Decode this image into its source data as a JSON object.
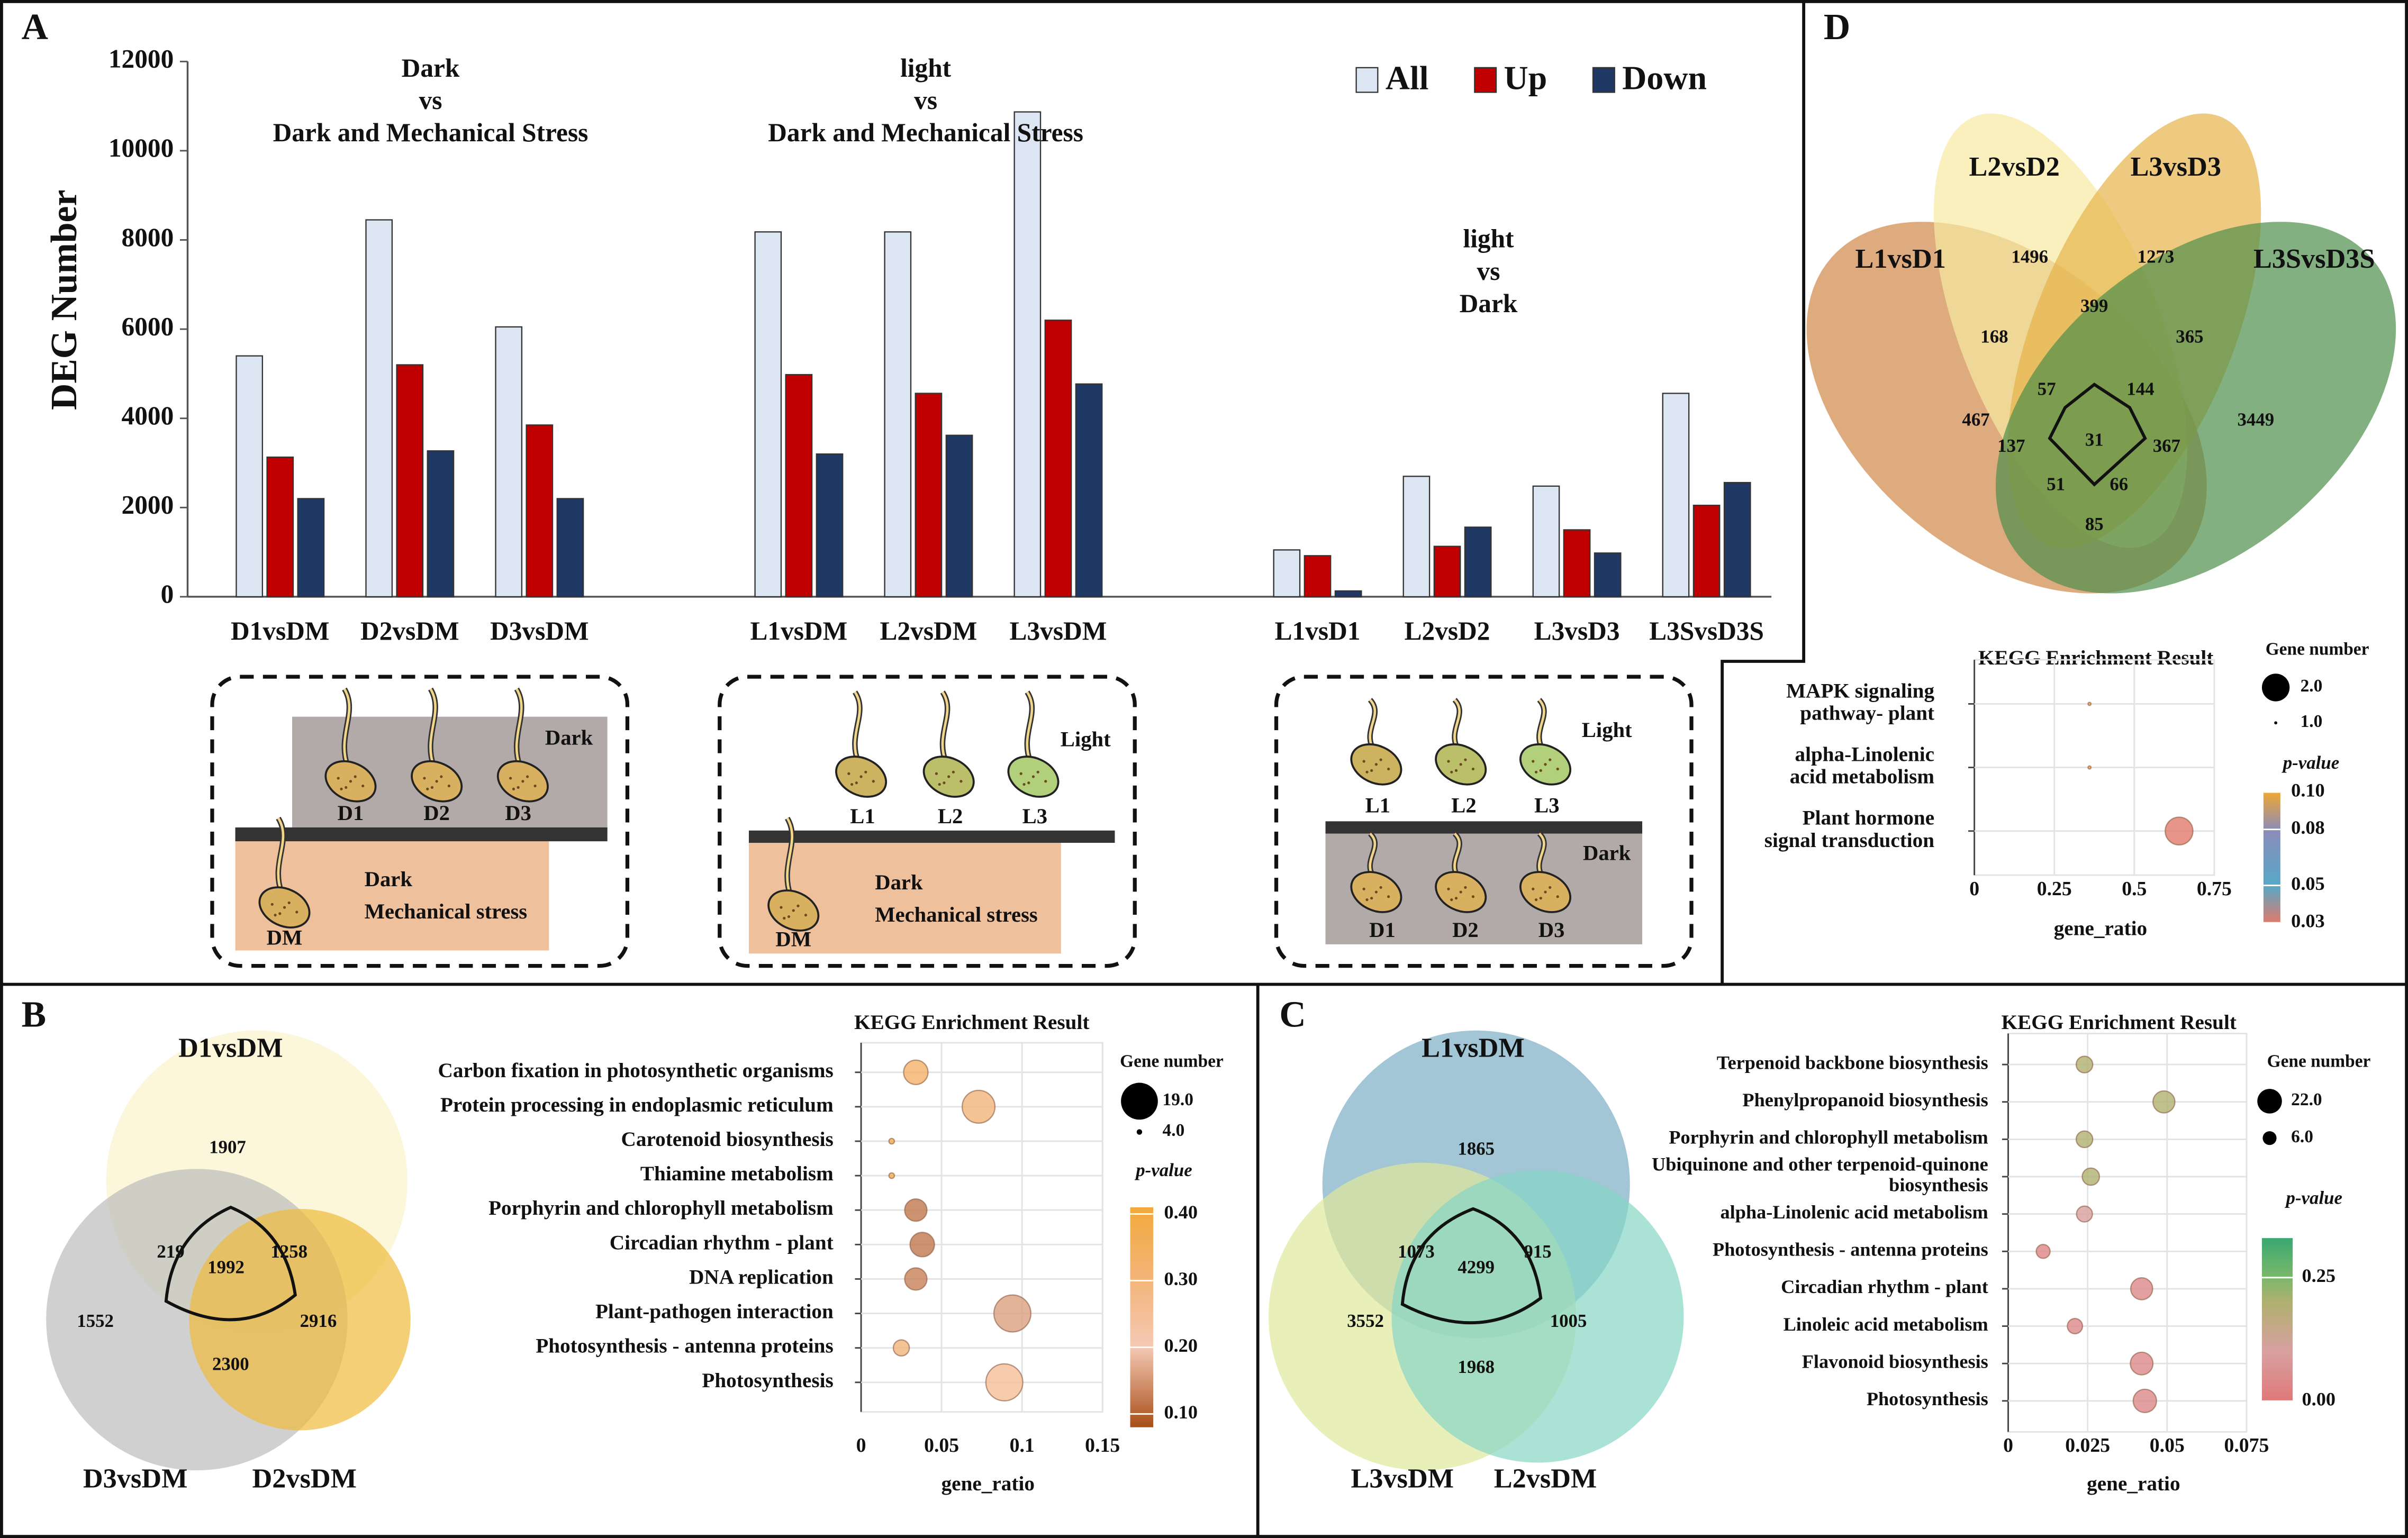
{
  "panel_labels": [
    "A",
    "B",
    "C",
    "D"
  ],
  "chart_data": [
    {
      "type": "bar",
      "ylabel": "DEG Number",
      "categories": [
        "D1vsDM",
        "D2vsDM",
        "D3vsDM",
        null,
        "L1vsDM",
        "L2vsDM",
        "L3vsDM",
        null,
        "L1vsD1",
        "L2vsD2",
        "L3vsD3",
        "L3SvsD3S"
      ],
      "series": [
        {
          "name": "All",
          "color": "#dce6f2",
          "values": [
            5400,
            8450,
            6050,
            null,
            8180,
            8180,
            10870,
            null,
            1050,
            2700,
            2480,
            4560
          ]
        },
        {
          "name": "Up",
          "color": "#c00000",
          "values": [
            3130,
            5200,
            3850,
            null,
            4980,
            4560,
            6200,
            null,
            920,
            1130,
            1500,
            2050
          ]
        },
        {
          "name": "Down",
          "color": "#1f3864",
          "values": [
            2200,
            3270,
            2200,
            null,
            3200,
            3620,
            4770,
            null,
            130,
            1560,
            980,
            2560
          ]
        }
      ],
      "ylim": [
        0,
        12000
      ],
      "yticks": [
        0,
        2000,
        4000,
        6000,
        8000,
        10000,
        12000
      ],
      "legend": "upper right",
      "annotations": [
        [
          "Dark",
          "vs",
          "Dark and Mechanical Stress"
        ],
        [
          "light",
          "vs",
          "Dark and Mechanical Stress"
        ],
        [
          "light",
          "vs",
          "Dark"
        ]
      ]
    },
    {
      "type": "bubble",
      "title": "KEGG Enrichment Result",
      "xlabel": "gene_ratio",
      "categories": [
        "Carbon fixation in photosynthetic organisms",
        "Protein processing in endoplasmic reticulum",
        "Carotenoid biosynthesis",
        "Thiamine metabolism",
        "Porphyrin and chlorophyll metabolism",
        "Circadian rhythm - plant",
        "DNA replication",
        "Plant-pathogen interaction",
        "Photosynthesis - antenna proteins",
        "Photosynthesis"
      ],
      "values": [
        0.034,
        0.073,
        0.019,
        0.019,
        0.034,
        0.038,
        0.034,
        0.094,
        0.025,
        0.089
      ],
      "sizes": [
        13,
        17,
        4,
        4,
        12,
        13,
        12,
        19,
        9,
        19
      ],
      "pvalues": [
        0.33,
        0.3,
        0.38,
        0.38,
        0.12,
        0.12,
        0.13,
        0.16,
        0.3,
        0.25
      ],
      "xlim": [
        0,
        0.15
      ],
      "xticks": [
        0,
        0.05,
        0.1,
        0.15
      ],
      "grid": true,
      "size_legend": {
        "title": "Gene number",
        "values": [
          {
            "value": 19,
            "label": "19.0"
          },
          {
            "value": 4,
            "label": "4.0"
          }
        ]
      },
      "color_legend": {
        "title": "p-value",
        "clim": [
          0.08,
          0.41
        ],
        "ticks": [
          {
            "value": 0.4,
            "label": "0.40"
          },
          {
            "value": 0.3,
            "label": "0.30"
          },
          {
            "value": 0.2,
            "label": "0.20"
          },
          {
            "value": 0.1,
            "label": "0.10"
          }
        ],
        "colorscale": [
          [
            0.08,
            "#a84e18"
          ],
          [
            0.2,
            "#f4c9b4"
          ],
          [
            0.3,
            "#f3b57a"
          ],
          [
            0.41,
            "#f2a93b"
          ]
        ]
      }
    },
    {
      "type": "bubble",
      "title": "KEGG Enrichment Result",
      "xlabel": "gene_ratio",
      "categories": [
        "Terpenoid backbone biosynthesis",
        "Phenylpropanoid biosynthesis",
        "Porphyrin and chlorophyll metabolism",
        [
          "Ubiquinone and other terpenoid-quinone",
          "biosynthesis"
        ],
        "alpha-Linolenic acid metabolism",
        "Photosynthesis - antenna proteins",
        "Circadian rhythm - plant",
        "Linoleic acid metabolism",
        "Flavonoid biosynthesis",
        "Photosynthesis"
      ],
      "values": [
        0.024,
        0.049,
        0.024,
        0.026,
        0.024,
        0.011,
        0.042,
        0.021,
        0.042,
        0.043
      ],
      "sizes": [
        10,
        18,
        10,
        11,
        9,
        6,
        18,
        8,
        19,
        20
      ],
      "pvalues": [
        0.2,
        0.2,
        0.2,
        0.2,
        0.1,
        0.03,
        0.04,
        0.04,
        0.04,
        0.04
      ],
      "xlim": [
        0,
        0.075
      ],
      "xticks": [
        0,
        0.025,
        0.05,
        0.075
      ],
      "grid": true,
      "size_legend": {
        "title": "Gene number",
        "values": [
          {
            "value": 22,
            "label": "22.0"
          },
          {
            "value": 6,
            "label": "6.0"
          }
        ]
      },
      "color_legend": {
        "title": "p-value",
        "clim": [
          0,
          0.33
        ],
        "ticks": [
          0.25,
          {
            "value": 0,
            "label": "0.00"
          }
        ],
        "colorscale": [
          [
            0,
            "#e07878"
          ],
          [
            0.1,
            "#d8a0a0"
          ],
          [
            0.2,
            "#b0b070"
          ],
          [
            0.25,
            "#7ab86a"
          ],
          [
            0.33,
            "#3aa870"
          ]
        ]
      }
    },
    {
      "type": "bubble",
      "title": "KEGG Enrichment Result",
      "xlabel": "gene_ratio",
      "categories": [
        [
          "MAPK signaling",
          "pathway- plant"
        ],
        [
          "alpha-Linolenic",
          "acid metabolism"
        ],
        [
          "Plant hormone",
          "signal transduction"
        ]
      ],
      "values": [
        0.36,
        0.36,
        0.64
      ],
      "sizes": [
        1,
        1,
        2
      ],
      "pvalues": [
        0.1,
        0.1,
        0.03
      ],
      "xlim": [
        0,
        0.75
      ],
      "xticks": [
        0,
        0.25,
        0.5,
        0.75
      ],
      "grid": true,
      "size_legend": {
        "title": "Gene number",
        "values": [
          {
            "value": 2,
            "label": "2.0"
          },
          {
            "value": 1,
            "label": "1.0"
          }
        ]
      },
      "color_legend": {
        "title": "p-value",
        "clim": [
          0.03,
          0.1
        ],
        "ticks": [
          {
            "value": 0.1,
            "label": "0.10"
          },
          0.08,
          0.05,
          0.03
        ],
        "colorscale": [
          [
            0.03,
            "#e07a6a"
          ],
          [
            0.05,
            "#56a8c8"
          ],
          [
            0.08,
            "#8c8cb8"
          ],
          [
            0.1,
            "#f0a830"
          ]
        ]
      }
    }
  ],
  "venns": [
    {
      "sets": [
        "D1vsDM",
        "D3vsDM",
        "D2vsDM"
      ],
      "regions": [
        1907,
        219,
        1992,
        1258,
        1552,
        2916,
        2300
      ]
    },
    {
      "sets": [
        "L1vsDM",
        "L3vsDM",
        "L2vsDM"
      ],
      "regions": [
        1865,
        1073,
        4299,
        915,
        3552,
        1005,
        1968
      ]
    },
    {
      "sets": [
        "L1vsD1",
        "L2vsD2",
        "L3vsD3",
        "L3SvsD3S"
      ],
      "regions": [
        1496,
        1273,
        399,
        168,
        365,
        57,
        144,
        467,
        3449,
        137,
        31,
        367,
        51,
        66,
        85
      ]
    }
  ],
  "diagrams": [
    [
      "Dark",
      "D1",
      "D2",
      "D3",
      "Dark",
      "Mechanical stress",
      "DM"
    ],
    [
      "Light",
      "L1",
      "L2",
      "L3",
      "Dark",
      "Mechanical stress",
      "DM"
    ],
    [
      "Light",
      "L1",
      "L2",
      "L3",
      "Dark",
      "D1",
      "D2",
      "D3"
    ]
  ]
}
